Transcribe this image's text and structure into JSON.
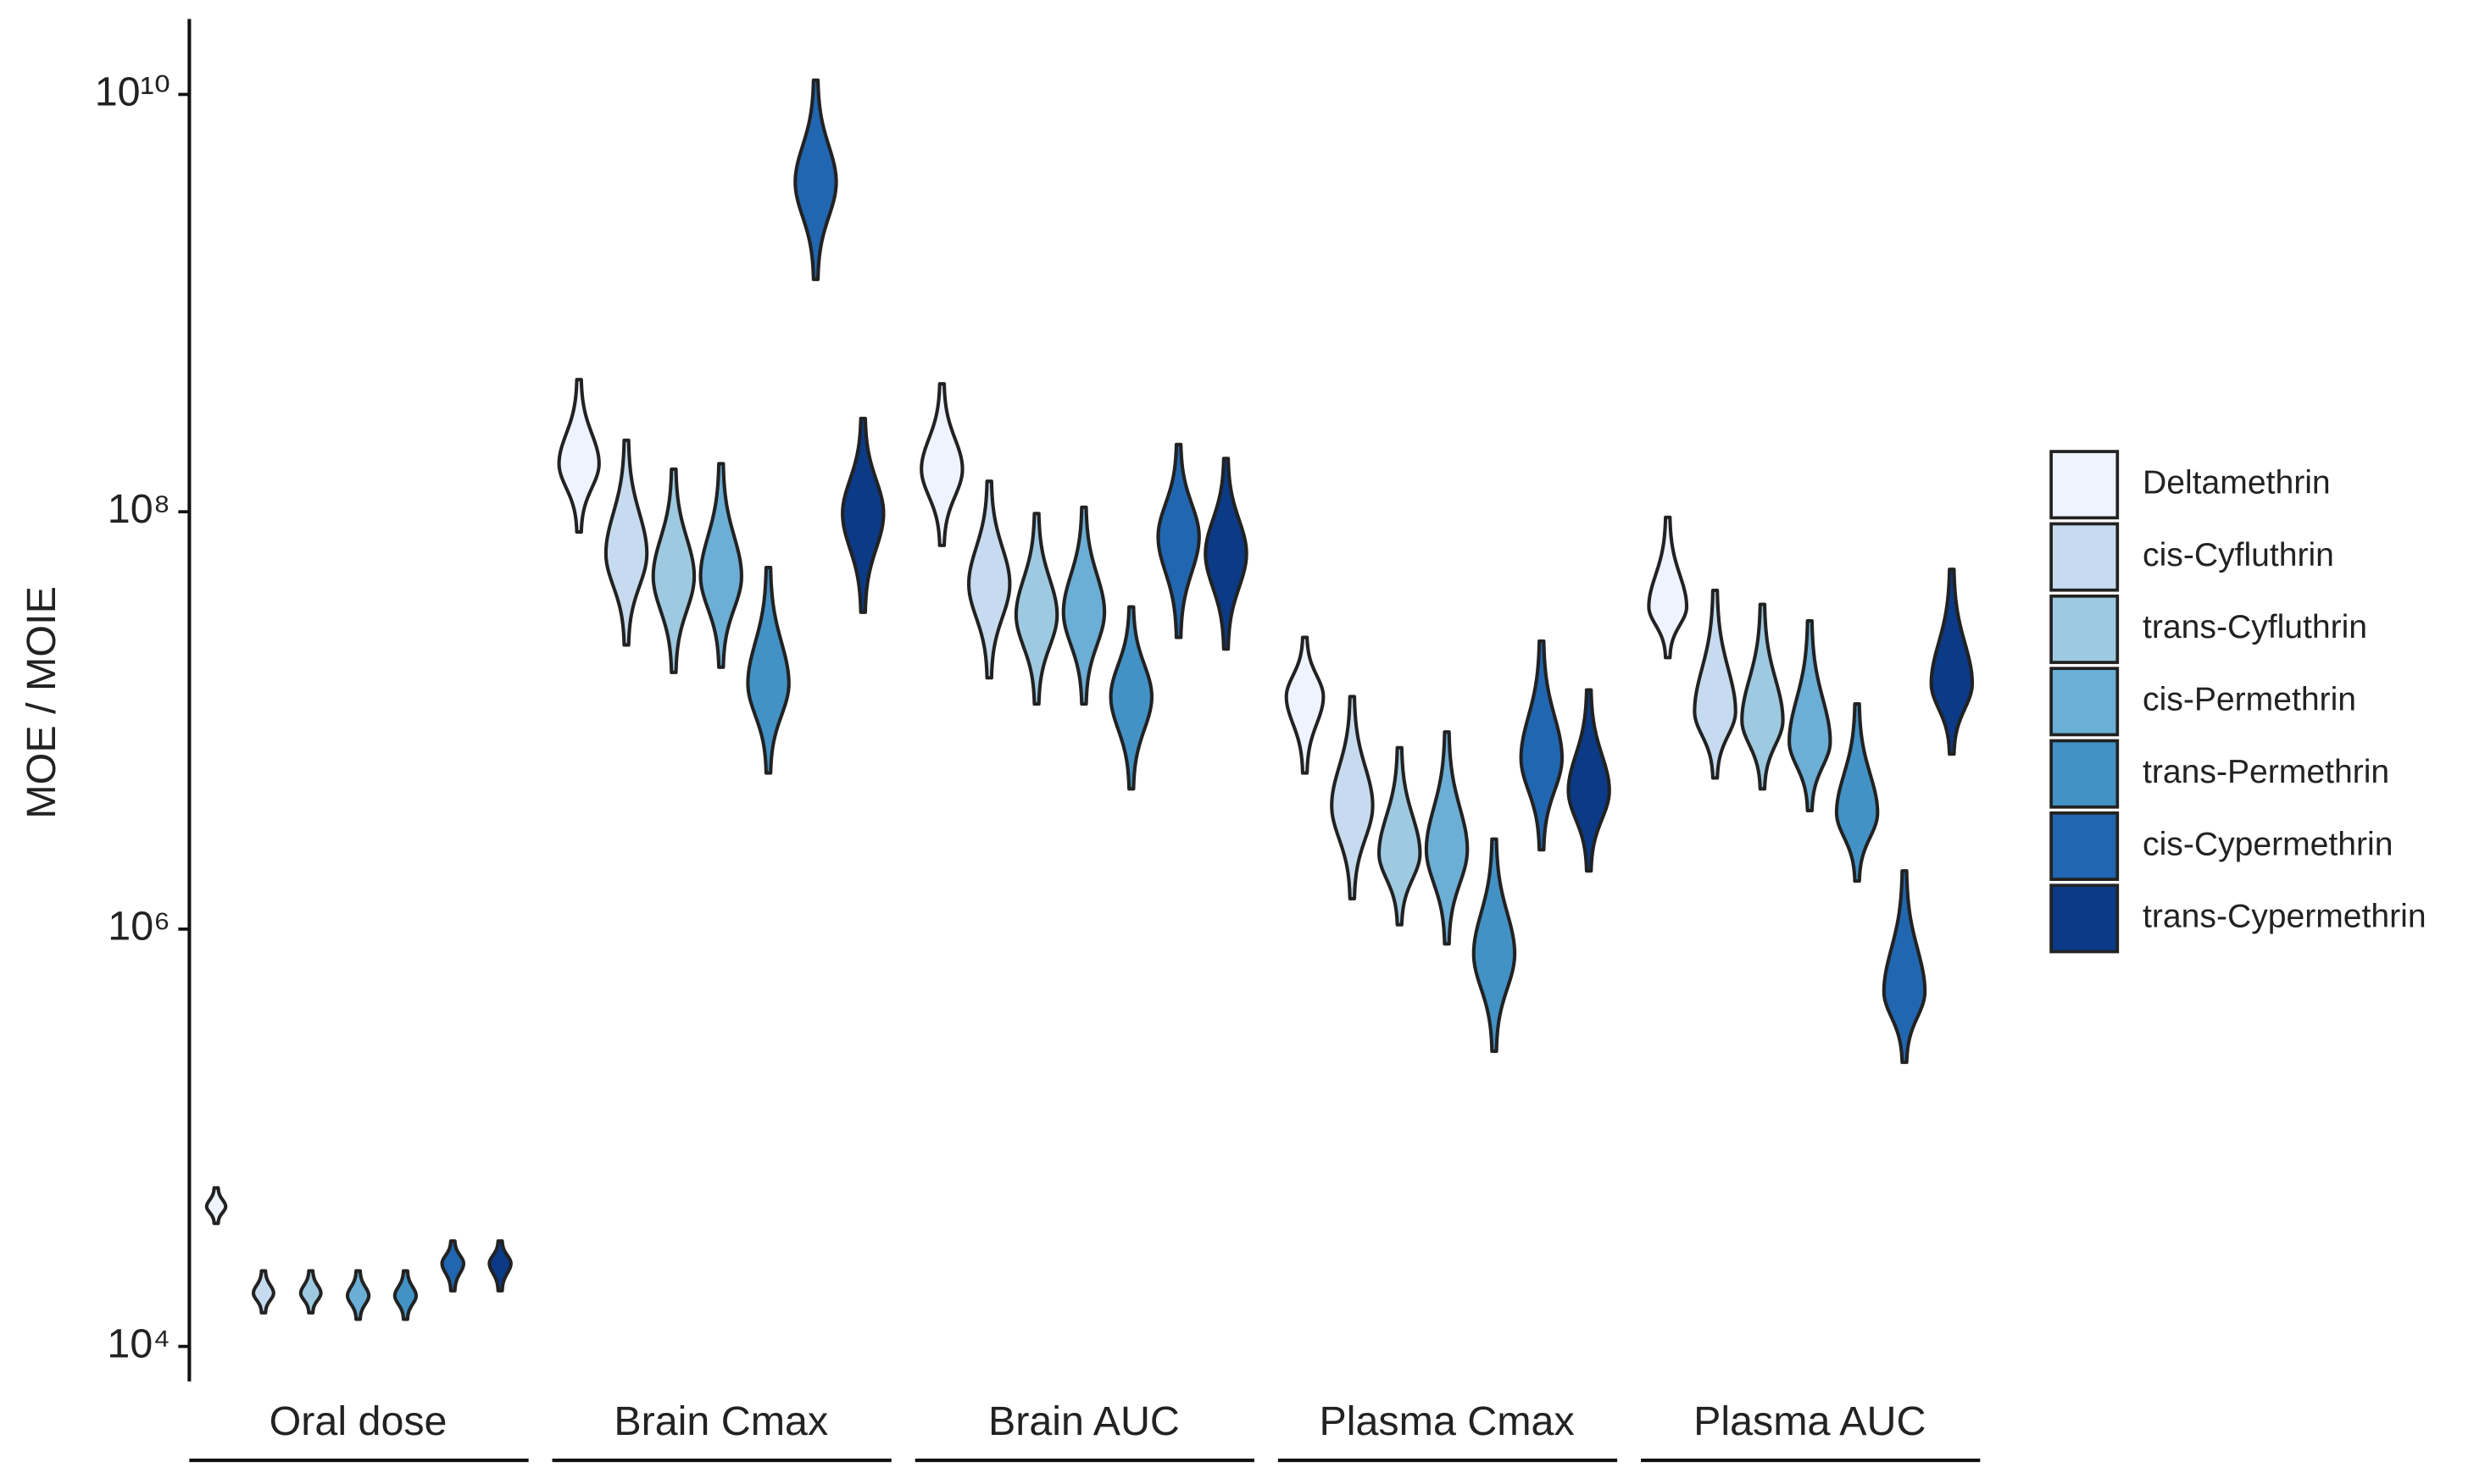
{
  "chart_data": {
    "type": "violin",
    "y_label": "MOE / MOIE",
    "log_scale": true,
    "ylim": [
      6800,
      23000000000
    ],
    "yticks": [
      {
        "value": 10000,
        "label": "10⁴"
      },
      {
        "value": 1000000,
        "label": "10⁶"
      },
      {
        "value": 100000000,
        "label": "10⁸"
      },
      {
        "value": 10000000000,
        "label": "10¹⁰"
      }
    ],
    "categories": [
      "Oral dose",
      "Brain Cmax",
      "Brain AUC",
      "Plasma Cmax",
      "Plasma AUC"
    ],
    "legend_position": "right",
    "series": [
      {
        "name": "Deltamethrin",
        "color": "#eef3ff",
        "min": [
          38900,
          80000000,
          69000000,
          5600000,
          20000000
        ],
        "peak": [
          46800,
          170000000,
          160000000,
          13000000,
          35000000
        ],
        "max": [
          57500,
          430000000,
          410000000,
          25000000,
          94000000
        ]
      },
      {
        "name": "cis-Cyfluthrin",
        "color": "#c6dbef",
        "min": [
          14500,
          23000000,
          16000000,
          1400000,
          5300000
        ],
        "peak": [
          18000,
          63000000,
          45000000,
          3900000,
          11000000
        ],
        "max": [
          23000,
          220000000,
          140000000,
          13000000,
          42000000
        ]
      },
      {
        "name": "trans-Cyfluthrin",
        "color": "#9ecae1",
        "min": [
          14500,
          17000000,
          12000000,
          1050000,
          4700000
        ],
        "peak": [
          18000,
          49000000,
          32000000,
          2300000,
          10000000
        ],
        "max": [
          23000,
          160000000,
          98000000,
          7400000,
          36000000
        ]
      },
      {
        "name": "cis-Permethrin",
        "color": "#6baed6",
        "min": [
          13500,
          18000000,
          12000000,
          850000,
          3700000
        ],
        "peak": [
          17500,
          49000000,
          33000000,
          2400000,
          7900000
        ],
        "max": [
          23000,
          170000000,
          105000000,
          8800000,
          30000000
        ]
      },
      {
        "name": "trans-Permethrin",
        "color": "#4292c6",
        "min": [
          13500,
          5600000,
          4700000,
          260000,
          1700000
        ],
        "peak": [
          17500,
          15000000,
          13000000,
          760000,
          3600000
        ],
        "max": [
          23000,
          54000000,
          35000000,
          2700000,
          12000000
        ]
      },
      {
        "name": "cis-Cypermethrin",
        "color": "#2166b0",
        "min": [
          18500,
          1300000000,
          25000000,
          2400000,
          230000
        ],
        "peak": [
          25000,
          3800000000,
          76000000,
          6600000,
          500000
        ],
        "max": [
          32000,
          11700000000,
          210000000,
          24000000,
          1900000
        ]
      },
      {
        "name": "trans-Cypermethrin",
        "color": "#0b3a86",
        "min": [
          18500,
          33000000,
          22000000,
          1900000,
          6900000
        ],
        "peak": [
          25000,
          98000000,
          63000000,
          4600000,
          15000000
        ],
        "max": [
          32000,
          280000000,
          180000000,
          14000000,
          53000000
        ]
      }
    ]
  }
}
